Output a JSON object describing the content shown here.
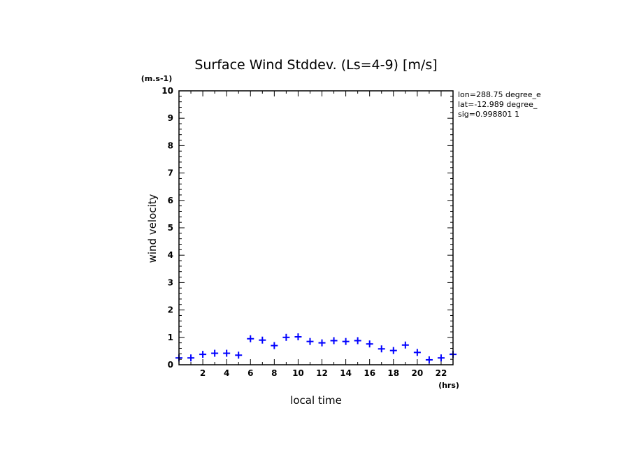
{
  "chart_data": {
    "type": "scatter",
    "title": "Surface Wind Stddev. (Ls=4-9) [m/s]",
    "xlabel": "local time",
    "ylabel": "wind velocity",
    "x_unit": "(hrs)",
    "y_unit": "(m.s-1)",
    "xlim": [
      0,
      23
    ],
    "ylim": [
      0,
      10
    ],
    "x_ticks": [
      2,
      4,
      6,
      8,
      10,
      12,
      14,
      16,
      18,
      20,
      22
    ],
    "y_ticks": [
      0,
      1,
      2,
      3,
      4,
      5,
      6,
      7,
      8,
      9,
      10
    ],
    "info_lines": [
      "lon=288.75 degree_e",
      "lat=-12.989 degree_",
      "sig=0.998801 1"
    ],
    "marker_color": "#0000ff",
    "series": [
      {
        "marker": "plus",
        "x": [
          0,
          1,
          2,
          3,
          4,
          5,
          6,
          7,
          8,
          9,
          10,
          11,
          12,
          13,
          14,
          15,
          16,
          17,
          18,
          19,
          20,
          21,
          22,
          23
        ],
        "y": [
          0.25,
          0.25,
          0.38,
          0.42,
          0.42,
          0.35,
          0.95,
          0.9,
          0.7,
          1.0,
          1.02,
          0.85,
          0.8,
          0.88,
          0.85,
          0.88,
          0.76,
          0.58,
          0.52,
          0.72,
          0.45,
          0.18,
          0.25,
          0.38
        ]
      }
    ]
  }
}
